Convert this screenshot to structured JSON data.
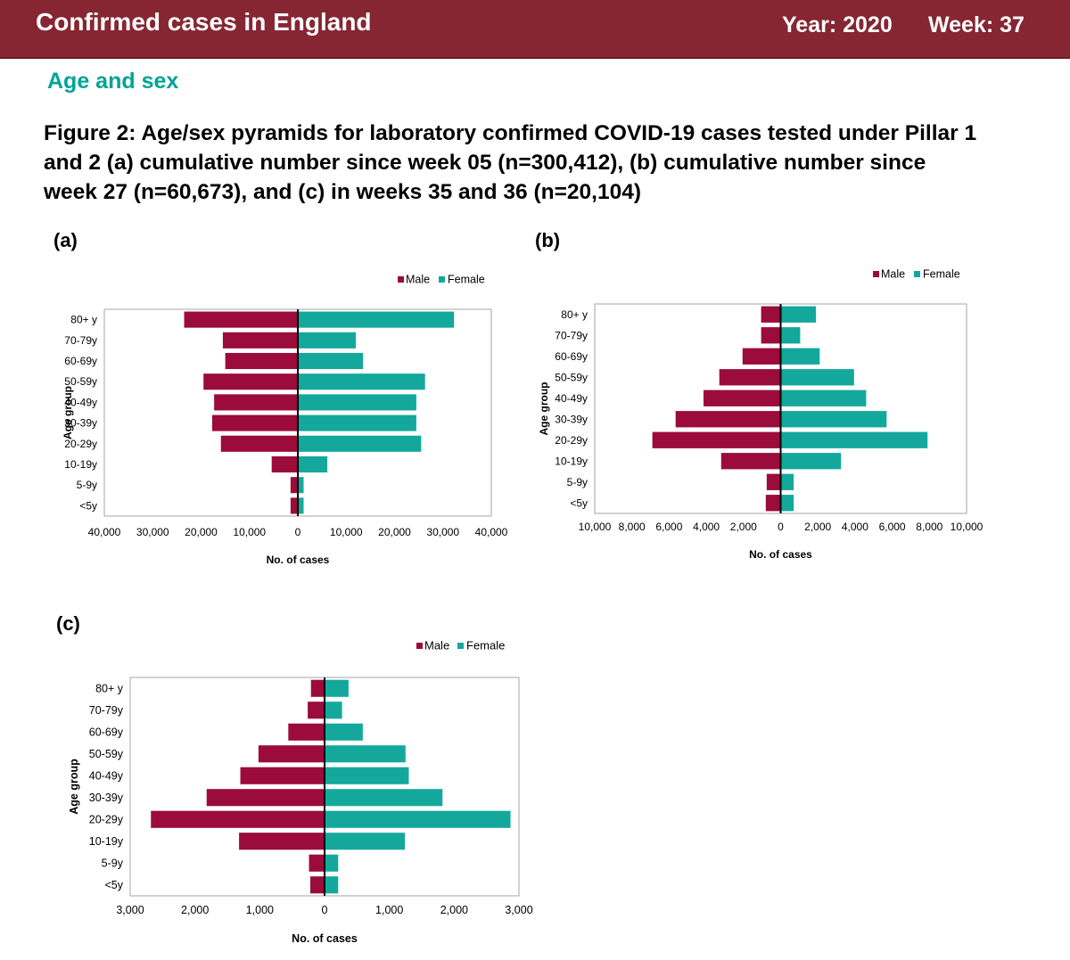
{
  "header": {
    "title": "Confirmed cases in England",
    "year": "Year: 2020",
    "week": "Week: 37"
  },
  "section_title": "Age and sex",
  "figure_title": {
    "line1": "Figure 2: Age/sex pyramids for laboratory confirmed COVID-19 cases tested under Pillar 1",
    "line2": "and 2 (a) cumulative number since week 05 (n=300,412), (b) cumulative number since",
    "line3": "week 27 (n=60,673),  and (c) in weeks 35 and 36 (n=20,104)"
  },
  "colors": {
    "male": "#9b0b3b",
    "female": "#14a89d",
    "header": "#862633",
    "accent": "#00a495"
  },
  "chart_data": [
    {
      "id": "a",
      "panel_label": "(a)",
      "type": "bar",
      "title": "",
      "xlabel": "No. of cases",
      "ylabel": "Age group",
      "categories": [
        "80+ y",
        "70-79y",
        "60-69y",
        "50-59y",
        "40-49y",
        "30-39y",
        "20-29y",
        "10-19y",
        "5-9y",
        "<5y"
      ],
      "series": [
        {
          "name": "Male",
          "values": [
            23500,
            15500,
            15000,
            19500,
            17300,
            17700,
            15900,
            5400,
            1500,
            1500
          ]
        },
        {
          "name": "Female",
          "values": [
            32300,
            12000,
            13500,
            26300,
            24500,
            24500,
            25500,
            6100,
            1200,
            1200
          ]
        }
      ],
      "xlim": [
        -40000,
        40000
      ],
      "xticks": [
        -40000,
        -30000,
        -20000,
        -10000,
        0,
        10000,
        20000,
        30000,
        40000
      ],
      "xtick_labels": [
        "40,000",
        "30,000",
        "20,000",
        "10,000",
        "0",
        "10,000",
        "20,000",
        "30,000",
        "40,000"
      ],
      "legend": [
        "Male",
        "Female"
      ]
    },
    {
      "id": "b",
      "panel_label": "(b)",
      "type": "bar",
      "title": "",
      "xlabel": "No. of cases",
      "ylabel": "Age group",
      "categories": [
        "80+ y",
        "70-79y",
        "60-69y",
        "50-59y",
        "40-49y",
        "30-39y",
        "20-29y",
        "10-19y",
        "5-9y",
        "<5y"
      ],
      "series": [
        {
          "name": "Male",
          "values": [
            1050,
            1050,
            2050,
            3300,
            4150,
            5650,
            6900,
            3200,
            750,
            800
          ]
        },
        {
          "name": "Female",
          "values": [
            1900,
            1050,
            2100,
            3950,
            4600,
            5700,
            7900,
            3250,
            700,
            700
          ]
        }
      ],
      "xlim": [
        -10000,
        10000
      ],
      "xticks": [
        -10000,
        -8000,
        -6000,
        -4000,
        -2000,
        0,
        2000,
        4000,
        6000,
        8000,
        10000
      ],
      "xtick_labels": [
        "10,000",
        "8,000",
        "6,000",
        "4,000",
        "2,000",
        "0",
        "2,000",
        "4,000",
        "6,000",
        "8,000",
        "10,000"
      ],
      "legend": [
        "Male",
        "Female"
      ]
    },
    {
      "id": "c",
      "panel_label": "(c)",
      "type": "bar",
      "title": "",
      "xlabel": "No. of cases",
      "ylabel": "Age group",
      "categories": [
        "80+ y",
        "70-79y",
        "60-69y",
        "50-59y",
        "40-49y",
        "30-39y",
        "20-29y",
        "10-19y",
        "5-9y",
        "<5y"
      ],
      "series": [
        {
          "name": "Male",
          "values": [
            210,
            260,
            560,
            1020,
            1300,
            1820,
            2680,
            1320,
            240,
            220
          ]
        },
        {
          "name": "Female",
          "values": [
            370,
            270,
            590,
            1250,
            1300,
            1820,
            2870,
            1240,
            210,
            210
          ]
        }
      ],
      "xlim": [
        -3000,
        3000
      ],
      "xticks": [
        -3000,
        -2000,
        -1000,
        0,
        1000,
        2000,
        3000
      ],
      "xtick_labels": [
        "3,000",
        "2,000",
        "1,000",
        "0",
        "1,000",
        "2,000",
        "3,000"
      ],
      "legend": [
        "Male",
        "Female"
      ]
    }
  ]
}
